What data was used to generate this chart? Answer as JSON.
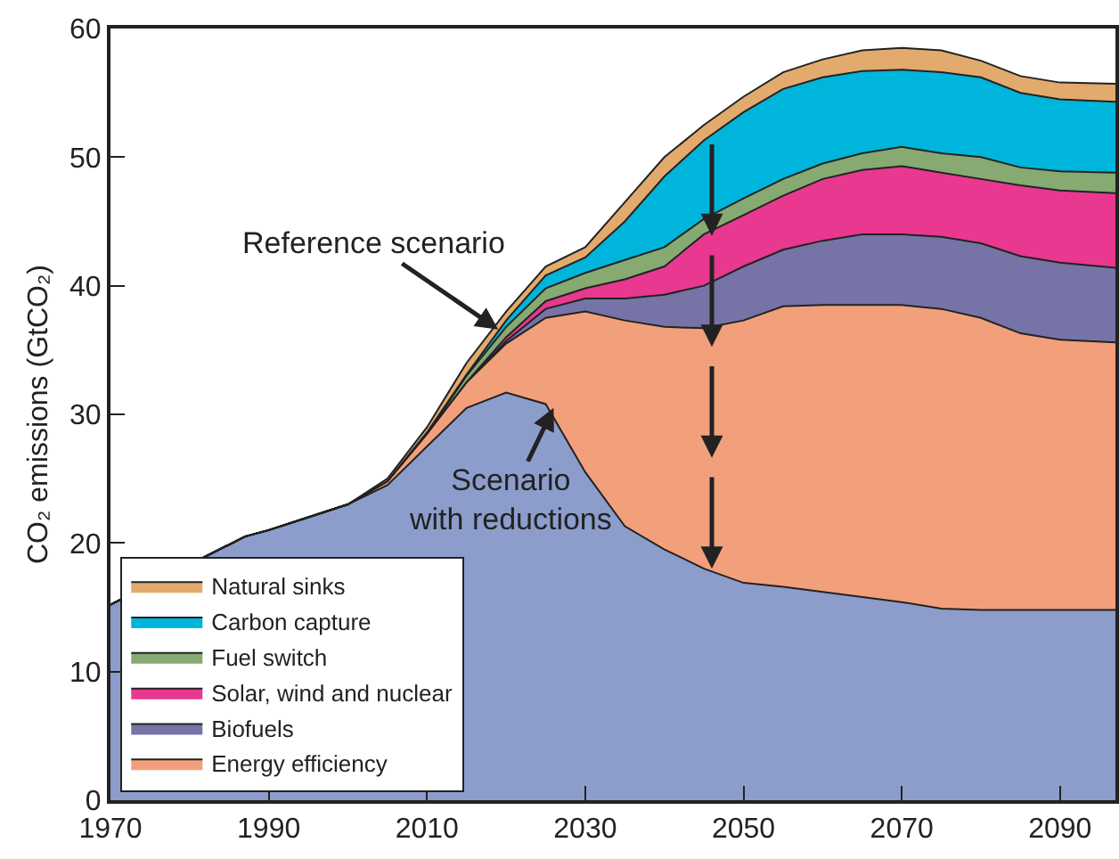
{
  "chart_data": {
    "type": "area",
    "stacked": true,
    "ylabel": "CO₂ emissions (GtCO₂)",
    "x": [
      1970,
      1987,
      1990,
      1995,
      2000,
      2005,
      2010,
      2015,
      2020,
      2025,
      2030,
      2035,
      2040,
      2045,
      2050,
      2055,
      2060,
      2065,
      2070,
      2075,
      2080,
      2085,
      2090,
      2097
    ],
    "xlim": [
      1970,
      2097
    ],
    "xticks": [
      1970,
      1990,
      2010,
      2030,
      2050,
      2070,
      2090
    ],
    "ylim": [
      0,
      60
    ],
    "yticks": [
      0,
      10,
      20,
      30,
      40,
      50,
      60
    ],
    "grid": false,
    "legend": "bottom left",
    "series": [
      {
        "color": "#8c9dcc",
        "values": [
          15.2,
          20.5,
          21,
          22,
          23,
          24.5,
          27.5,
          30.5,
          31.7,
          30.8,
          25.5,
          21.3,
          19.5,
          18,
          16.9,
          16.6,
          16.2,
          15.8,
          15.4,
          14.9,
          14.8,
          14.8,
          14.8,
          14.8
        ]
      },
      {
        "name": "Energy efficiency",
        "color": "#f2a07b",
        "values": [
          0,
          0,
          0,
          0,
          0,
          0.3,
          1,
          2,
          3.8,
          6.7,
          12.5,
          16,
          17.3,
          18.7,
          20.4,
          21.8,
          22.3,
          22.7,
          23.1,
          23.3,
          22.7,
          21.5,
          21,
          20.8
        ]
      },
      {
        "name": "Biofuels",
        "color": "#7673a6",
        "values": [
          0,
          0,
          0,
          0,
          0,
          0,
          0,
          0,
          0.2,
          0.7,
          1,
          1.7,
          2.5,
          3.3,
          4.2,
          4.4,
          5,
          5.5,
          5.5,
          5.6,
          5.8,
          6,
          6,
          5.8
        ]
      },
      {
        "name": "Solar, wind and nuclear",
        "color": "#e8388f",
        "values": [
          0,
          0,
          0,
          0,
          0,
          0,
          0,
          0,
          0.3,
          0.6,
          0.8,
          1.5,
          2.2,
          4,
          4,
          4.2,
          4.8,
          5,
          5.3,
          5,
          5,
          5.5,
          5.6,
          5.8
        ]
      },
      {
        "name": "Fuel switch",
        "color": "#86aa72",
        "values": [
          0,
          0,
          0,
          0,
          0,
          0,
          0,
          0.5,
          0.8,
          1,
          1.2,
          1.5,
          1.5,
          1.2,
          1.3,
          1.3,
          1.2,
          1.3,
          1.5,
          1.5,
          1.7,
          1.4,
          1.5,
          1.6
        ]
      },
      {
        "name": "Carbon capture",
        "color": "#00b5dc",
        "values": [
          0,
          0,
          0,
          0,
          0,
          0,
          0.1,
          0.1,
          0.5,
          1,
          1.2,
          3,
          5.5,
          6.1,
          6.7,
          7,
          6.7,
          6.4,
          6,
          6.3,
          6.2,
          5.8,
          5.6,
          5.5
        ]
      },
      {
        "name": "Natural sinks",
        "color": "#e2aa6c",
        "values": [
          0,
          0,
          0,
          0,
          0,
          0.2,
          0.4,
          0.9,
          0.7,
          0.7,
          0.8,
          1.5,
          1.5,
          1.2,
          1.2,
          1.3,
          1.4,
          1.6,
          1.7,
          1.7,
          1.3,
          1.3,
          1.3,
          1.4
        ]
      }
    ],
    "annotations": [
      {
        "text": "Reference scenario",
        "x": 2019,
        "y": 36.6
      },
      {
        "text": "Scenario\nwith reductions",
        "x": 2026,
        "y": 30.5
      }
    ]
  }
}
